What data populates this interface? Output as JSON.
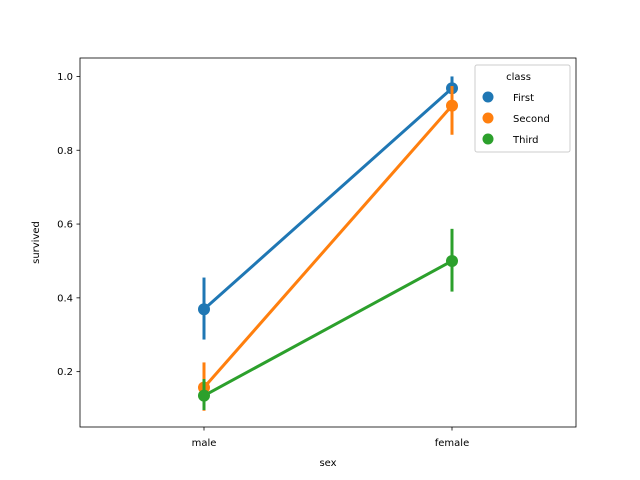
{
  "chart_data": {
    "type": "line",
    "title": "",
    "xlabel": "sex",
    "ylabel": "survived",
    "categories": [
      "male",
      "female"
    ],
    "ylim": [
      0.05,
      1.05
    ],
    "yticks": [
      "0.2",
      "0.4",
      "0.6",
      "0.8",
      "1.0"
    ],
    "grid": false,
    "legend": {
      "title": "class",
      "position": "top-right"
    },
    "series": [
      {
        "name": "First",
        "color": "#1f77b4",
        "values": [
          0.369,
          0.968
        ],
        "ci_low": [
          0.287,
          0.937
        ],
        "ci_high": [
          0.455,
          1.0
        ]
      },
      {
        "name": "Second",
        "color": "#ff7f0e",
        "values": [
          0.157,
          0.921
        ],
        "ci_low": [
          0.094,
          0.842
        ],
        "ci_high": [
          0.225,
          0.974
        ]
      },
      {
        "name": "Third",
        "color": "#2ca02c",
        "values": [
          0.135,
          0.5
        ],
        "ci_low": [
          0.096,
          0.417
        ],
        "ci_high": [
          0.18,
          0.587
        ]
      }
    ]
  }
}
